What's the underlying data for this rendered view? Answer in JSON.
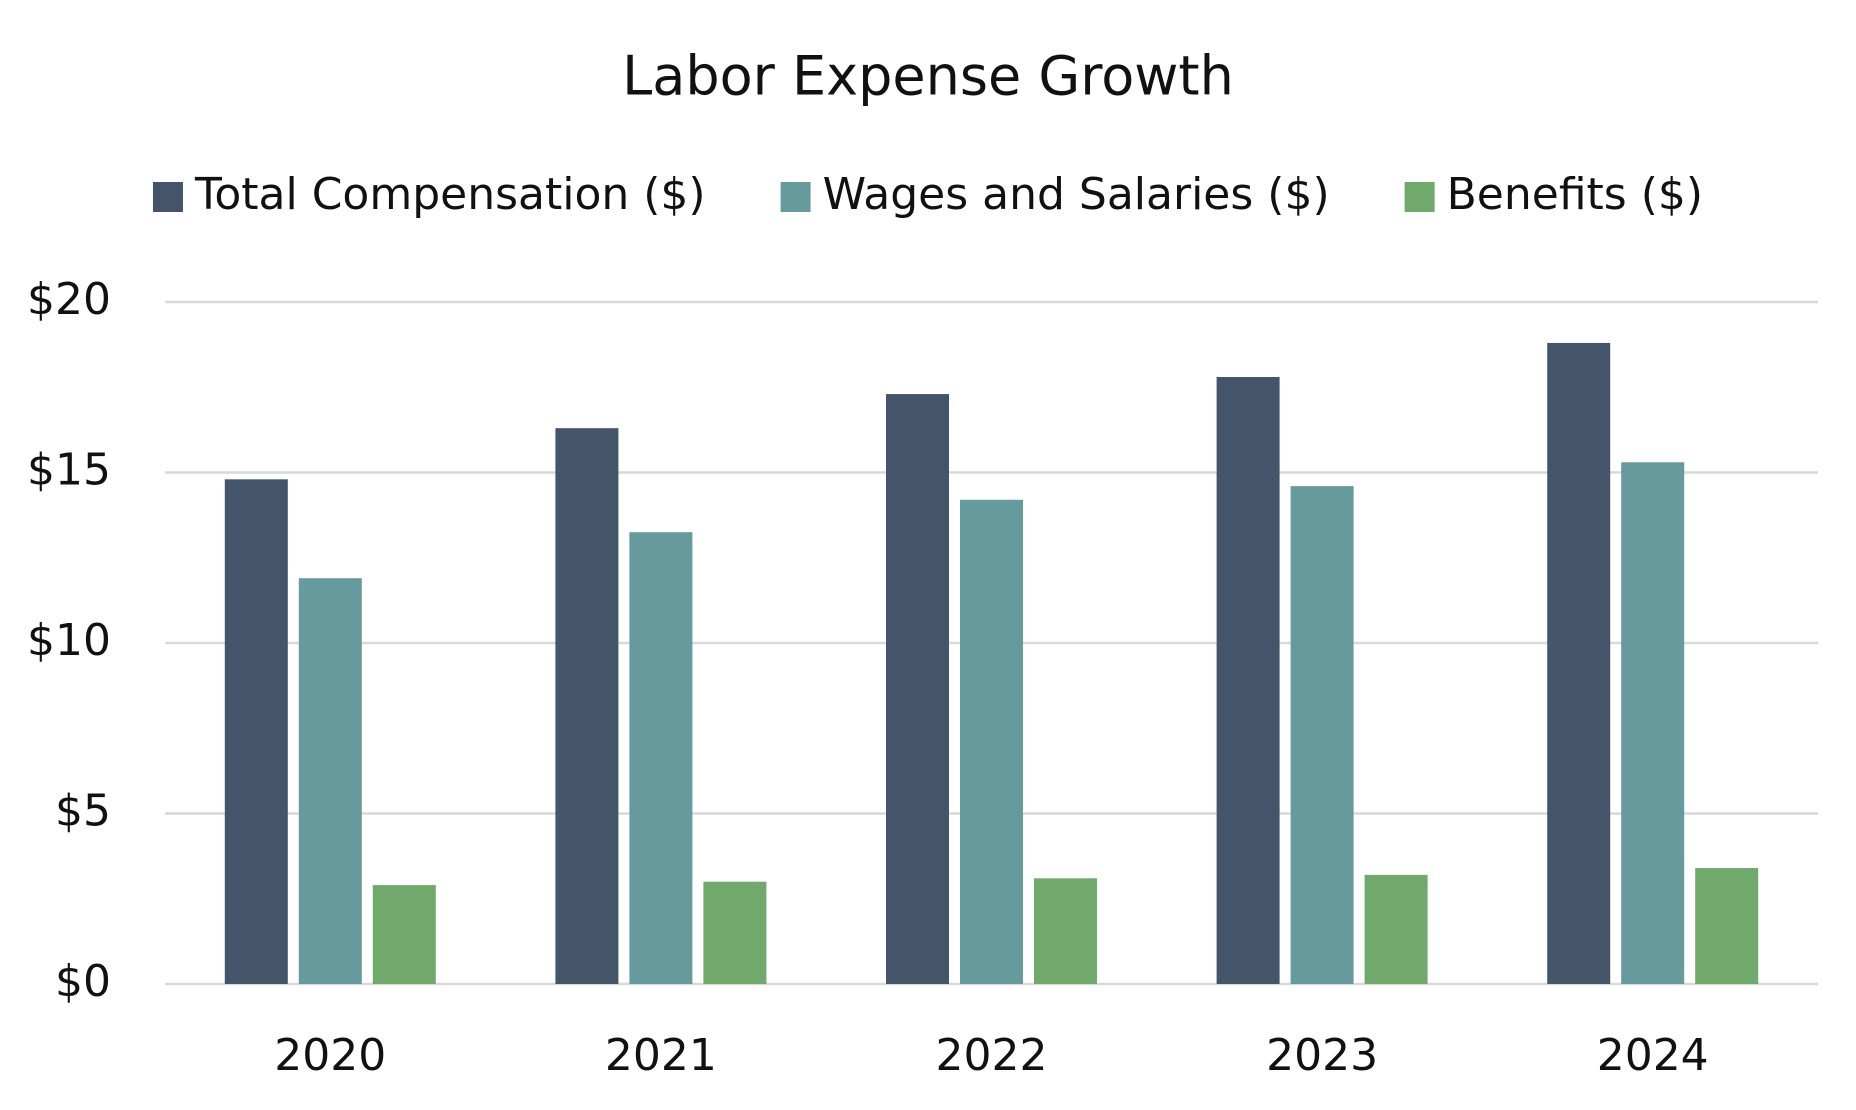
{
  "chart_data": {
    "type": "bar",
    "title": "Labor Expense Growth",
    "categories": [
      "2020",
      "2021",
      "2022",
      "2023",
      "2024"
    ],
    "series": [
      {
        "name": "Total Compensation ($)",
        "color": "#44546a",
        "values": [
          14.8,
          16.3,
          17.3,
          17.8,
          18.8
        ]
      },
      {
        "name": "Wages and Salaries ($)",
        "color": "#679a9c",
        "values": [
          11.9,
          13.25,
          14.2,
          14.6,
          15.3
        ]
      },
      {
        "name": "Benefits ($)",
        "color": "#70a96b",
        "values": [
          2.9,
          3.0,
          3.1,
          3.2,
          3.4
        ]
      }
    ],
    "ylim": [
      0,
      20
    ],
    "yticks": [
      {
        "value": 0,
        "label": "$0"
      },
      {
        "value": 5,
        "label": "$5"
      },
      {
        "value": 10,
        "label": "$10"
      },
      {
        "value": 15,
        "label": "$15"
      },
      {
        "value": 20,
        "label": "$20"
      }
    ],
    "grid": true,
    "legend": "top"
  }
}
